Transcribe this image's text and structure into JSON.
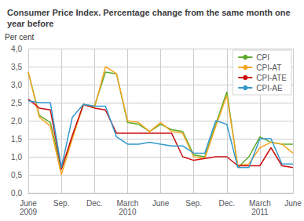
{
  "chart_data": {
    "type": "line",
    "title": "Consumer Price Index. Percentage change from the same month one\nyear before",
    "y_label": "Per cent",
    "categories": [
      "June\n2009",
      null,
      null,
      "Sep.",
      null,
      null,
      "Dec.",
      null,
      null,
      "March\n2010",
      null,
      null,
      "June",
      null,
      null,
      "Sep.",
      null,
      null,
      "Dec.",
      null,
      null,
      "March\n2011",
      null,
      null,
      "June"
    ],
    "series": [
      {
        "name": "CPI",
        "color": "#5aaa2a",
        "values": [
          3.35,
          2.15,
          1.95,
          0.65,
          1.55,
          2.45,
          2.4,
          3.35,
          3.3,
          1.95,
          1.9,
          1.7,
          1.9,
          1.75,
          1.7,
          1.05,
          1.0,
          1.9,
          2.8,
          0.7,
          1.0,
          1.55,
          1.4,
          1.35,
          1.35
        ]
      },
      {
        "name": "CPI-AT",
        "color": "#f5a623",
        "values": [
          3.35,
          2.1,
          1.85,
          0.5,
          1.5,
          2.45,
          2.35,
          3.5,
          3.3,
          2.0,
          1.95,
          1.7,
          1.95,
          1.7,
          1.65,
          1.0,
          0.95,
          1.85,
          2.7,
          0.75,
          0.8,
          1.25,
          1.4,
          1.35,
          1.1
        ]
      },
      {
        "name": "CPI-ATE",
        "color": "#cc1111",
        "values": [
          2.6,
          2.35,
          2.3,
          0.65,
          1.6,
          2.45,
          2.35,
          2.3,
          1.65,
          1.65,
          1.65,
          1.65,
          1.65,
          1.65,
          1.0,
          0.9,
          0.95,
          1.0,
          1.0,
          0.75,
          0.75,
          0.75,
          1.25,
          0.75,
          0.7
        ]
      },
      {
        "name": "CPI-AE",
        "color": "#3399cc",
        "values": [
          2.55,
          2.5,
          2.5,
          0.7,
          2.1,
          2.45,
          2.4,
          2.4,
          1.55,
          1.35,
          1.35,
          1.4,
          1.35,
          1.3,
          1.3,
          1.1,
          1.1,
          2.0,
          1.9,
          0.7,
          0.7,
          1.5,
          1.5,
          0.8,
          0.8
        ]
      }
    ],
    "ylim": [
      0.0,
      4.0
    ],
    "yticks": [
      {
        "value": 0.0,
        "label": "0,0"
      },
      {
        "value": 0.5,
        "label": "0,5"
      },
      {
        "value": 1.0,
        "label": "1,0"
      },
      {
        "value": 1.5,
        "label": "1,5"
      },
      {
        "value": 2.0,
        "label": "2,0"
      },
      {
        "value": 2.5,
        "label": "2,5"
      },
      {
        "value": 3.0,
        "label": "3,0"
      },
      {
        "value": 3.5,
        "label": "3,5"
      },
      {
        "value": 4.0,
        "label": "4,0"
      }
    ],
    "grid": true,
    "legend": "upper right"
  }
}
